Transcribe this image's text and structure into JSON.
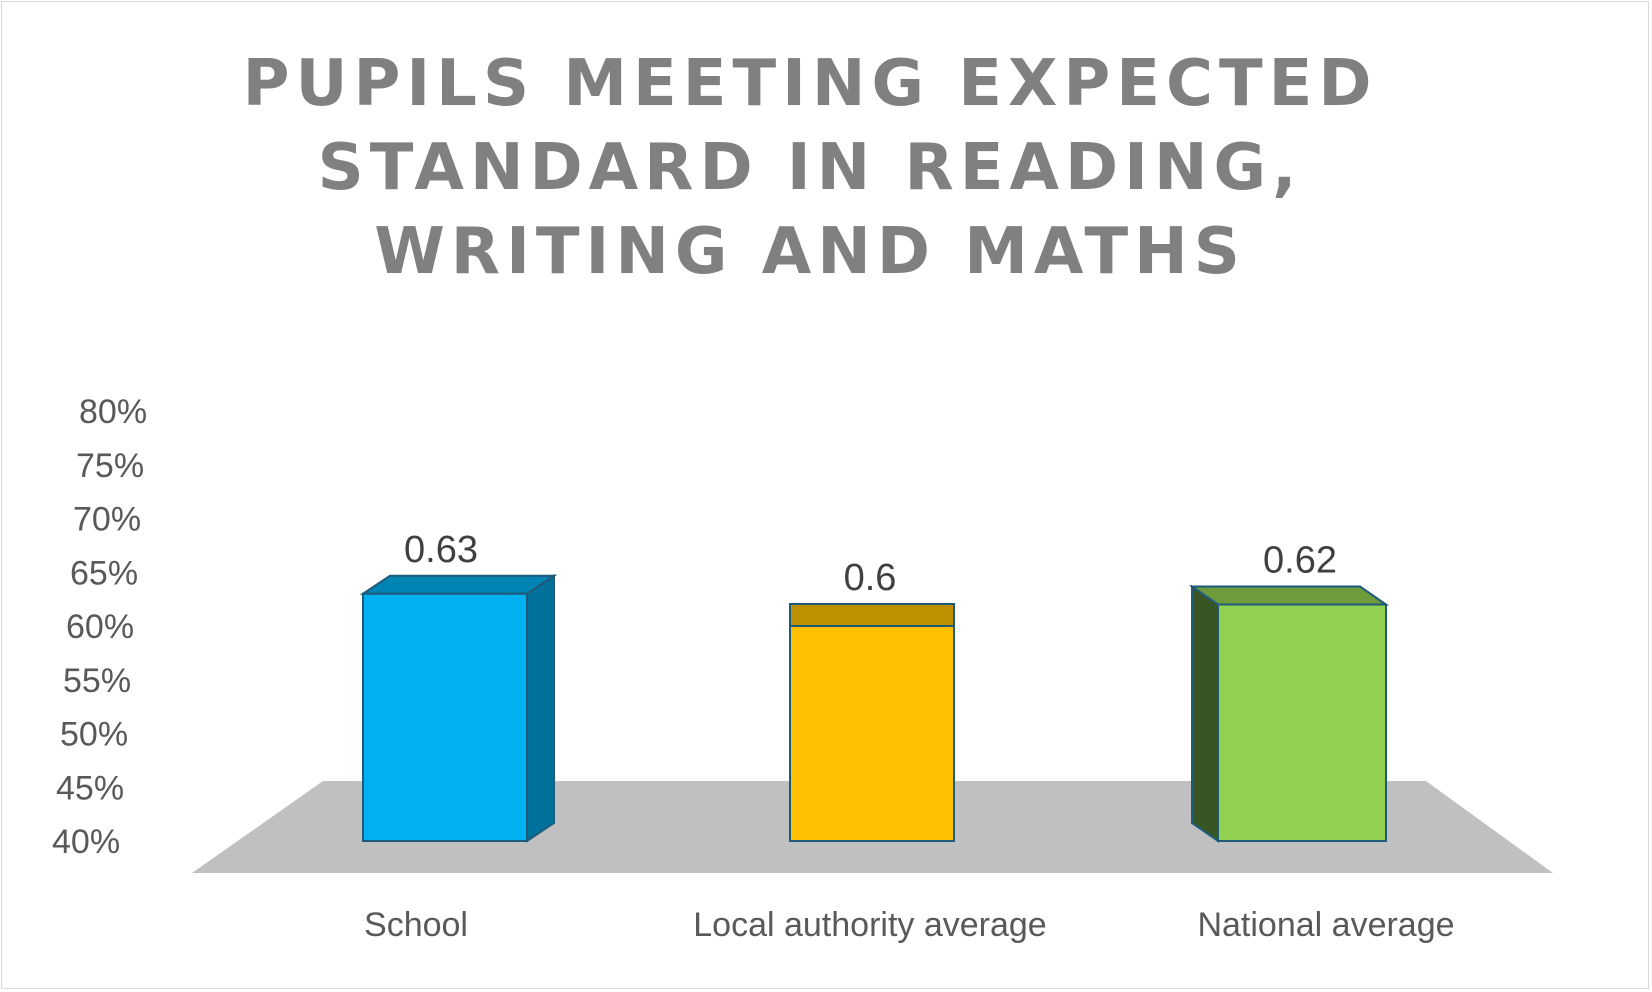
{
  "chart_data": {
    "type": "bar",
    "title_lines": [
      "PUPILS MEETING EXPECTED",
      "STANDARD IN READING,",
      "WRITING AND MATHS"
    ],
    "categories": [
      "School",
      "Local authority average",
      "National average"
    ],
    "values": [
      0.63,
      0.6,
      0.62
    ],
    "value_labels": [
      "0.63",
      "0.6",
      "0.62"
    ],
    "yticks": [
      "40%",
      "45%",
      "50%",
      "55%",
      "60%",
      "65%",
      "70%",
      "75%",
      "80%"
    ],
    "ylim": [
      0.4,
      0.8
    ],
    "grid": false,
    "legend": "none",
    "style": "3d-column",
    "colors": {
      "front": [
        "#00b0f0",
        "#ffc000",
        "#92d050"
      ],
      "side": [
        "#00719b",
        "#a37a00",
        "#375623"
      ],
      "top": [
        "#0084b4",
        "#bf9000",
        "#6e9c3c"
      ],
      "outline": "#1f5a7a",
      "floor": "#c0c0c0",
      "text": "#595959",
      "title": "#808080"
    }
  }
}
